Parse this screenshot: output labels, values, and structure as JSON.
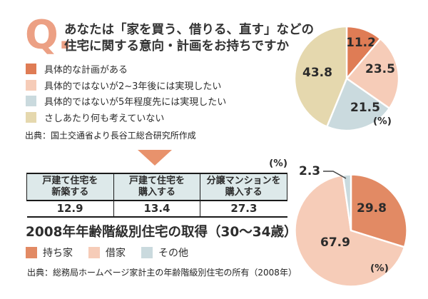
{
  "question": {
    "q_mark": "Q.",
    "lines": [
      "あなたは「家を買う、借りる、直す」などの",
      "住宅に関する意向・計画をお持ちですか"
    ],
    "source": "出典：国土交通省より長谷工総合研究所作成"
  },
  "acquisition": {
    "title": "2008年年齢階級別住宅の取得（30～34歳）",
    "source": "出典：総務局ホームページ家計主の年齢階級別住宅の所有（2008年）"
  },
  "colors": {
    "accent_orange": "#df7c55",
    "accent_orange_light": "#e28a64",
    "arrow_orange": "#e8926c",
    "pink": "#f6ccb8",
    "blue": "#cadade",
    "beige": "#e5d8ae",
    "table_header_bg": "#dde9ea",
    "q_mark": "#eca084",
    "text": "#2d2d2d"
  },
  "chart_data": [
    {
      "type": "pie",
      "title": "あなたは「家を買う、借りる、直す」などの住宅に関する意向・計画をお持ちですか",
      "unit_label": "(%)",
      "start_angle": "12-oclock",
      "direction": "clockwise",
      "legend_position": "left",
      "slices": [
        {
          "label": "具体的な計画がある",
          "value": 11.2,
          "color": "#df7c55"
        },
        {
          "label": "具体的ではないが2~3年後には実現したい",
          "value": 23.5,
          "color": "#f6ccb8"
        },
        {
          "label": "具体的ではないが5年程度先には実現したい",
          "value": 21.5,
          "color": "#cadade"
        },
        {
          "label": "さしあたり何も考えていない",
          "value": 43.8,
          "color": "#e5d8ae"
        }
      ]
    },
    {
      "type": "table",
      "unit_label": "(%)",
      "columns": [
        [
          "戸建て住宅を",
          "新築する"
        ],
        [
          "戸建て住宅を",
          "購入する"
        ],
        [
          "分譲マンションを",
          "購入する"
        ]
      ],
      "values": [
        12.9,
        13.4,
        27.3
      ]
    },
    {
      "type": "pie",
      "title": "2008年年齢階級別住宅の取得（30～34歳）",
      "unit_label": "(%)",
      "start_angle": "12-oclock",
      "direction": "clockwise",
      "legend_position": "bottom-left",
      "slices": [
        {
          "label": "持ち家",
          "value": 29.8,
          "color": "#e28a64"
        },
        {
          "label": "借家",
          "value": 67.9,
          "color": "#f6ccb8"
        },
        {
          "label": "その他",
          "value": 2.3,
          "color": "#cadade"
        }
      ]
    }
  ]
}
